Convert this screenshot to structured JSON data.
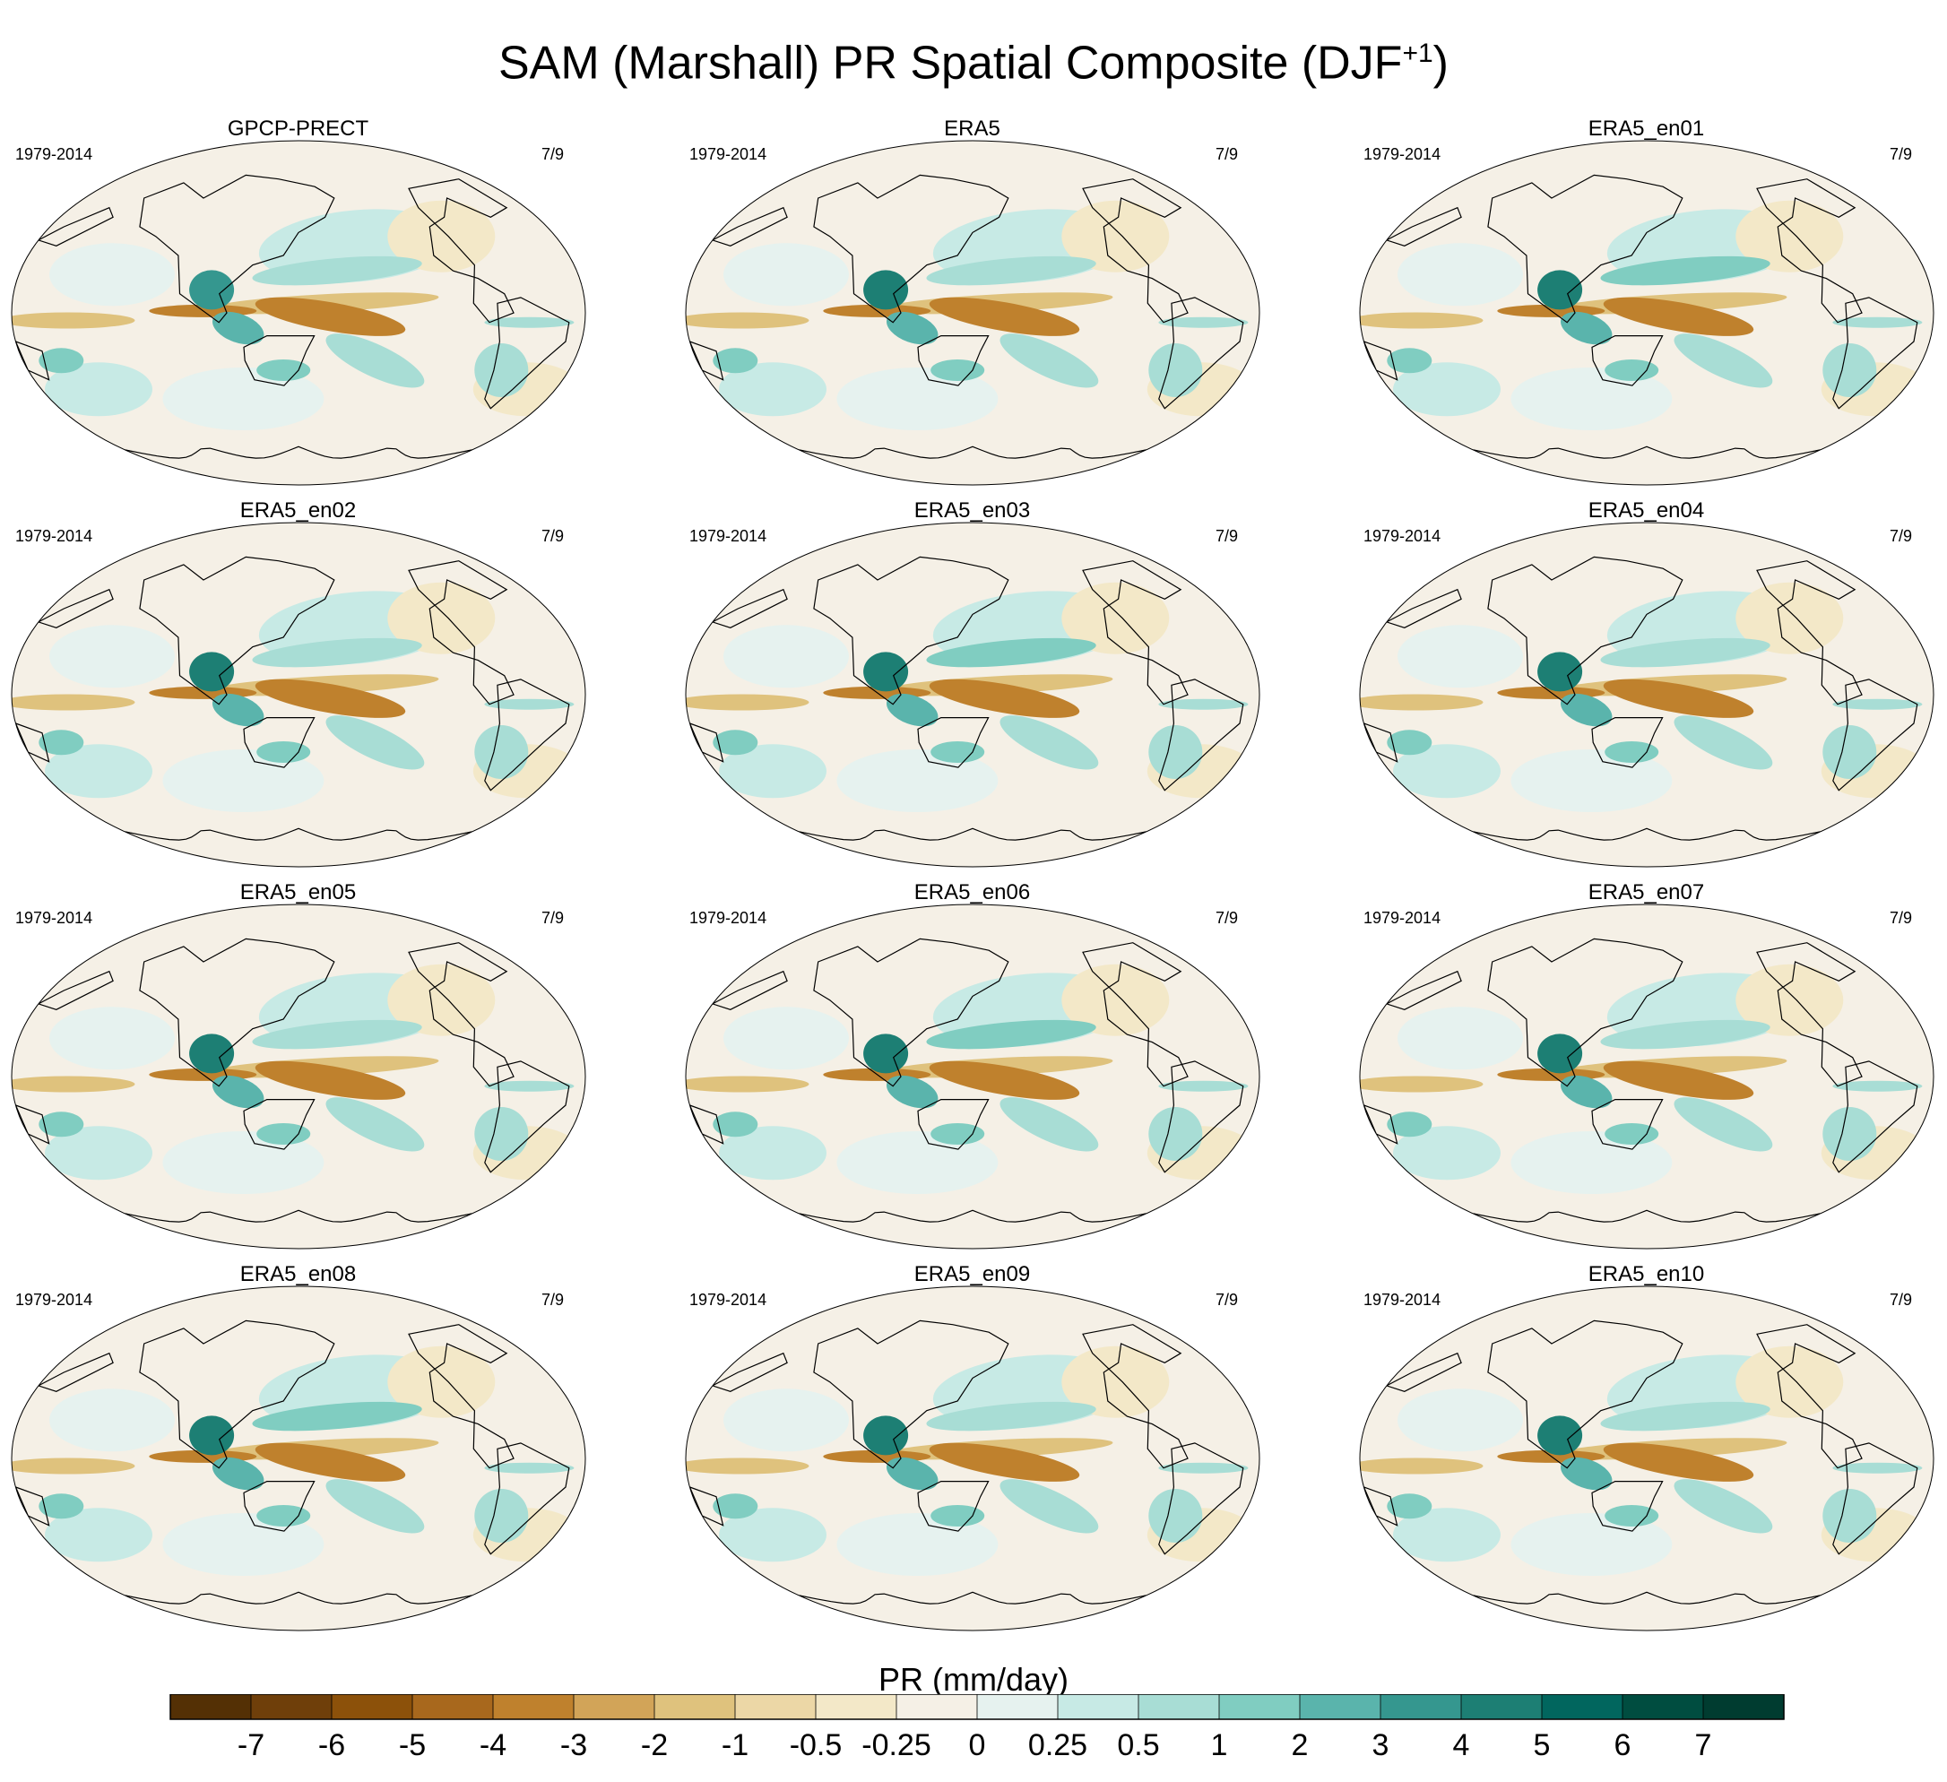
{
  "figure": {
    "title": "SAM (Marshall) PR Spatial Composite (DJF",
    "title_superscript": "+1",
    "title_close": ")"
  },
  "colors": {
    "brown_dark": "#543005",
    "teal_dark": "#003c30",
    "neutral": "#f5f0e6",
    "coast": "#000000"
  },
  "chart_data": {
    "type": "heatmap",
    "projection": "Robinson (Pacific-centered)",
    "variable": "PR",
    "units": "mm/day",
    "panels": [
      {
        "label": "GPCP-PRECT",
        "period": "1979-2014",
        "count": "7/9"
      },
      {
        "label": "ERA5",
        "period": "1979-2014",
        "count": "7/9"
      },
      {
        "label": "ERA5_en01",
        "period": "1979-2014",
        "count": "7/9"
      },
      {
        "label": "ERA5_en02",
        "period": "1979-2014",
        "count": "7/9"
      },
      {
        "label": "ERA5_en03",
        "period": "1979-2014",
        "count": "7/9"
      },
      {
        "label": "ERA5_en04",
        "period": "1979-2014",
        "count": "7/9"
      },
      {
        "label": "ERA5_en05",
        "period": "1979-2014",
        "count": "7/9"
      },
      {
        "label": "ERA5_en06",
        "period": "1979-2014",
        "count": "7/9"
      },
      {
        "label": "ERA5_en07",
        "period": "1979-2014",
        "count": "7/9"
      },
      {
        "label": "ERA5_en08",
        "period": "1979-2014",
        "count": "7/9"
      },
      {
        "label": "ERA5_en09",
        "period": "1979-2014",
        "count": "7/9"
      },
      {
        "label": "ERA5_en10",
        "period": "1979-2014",
        "count": "7/9"
      }
    ],
    "colorbar": {
      "title": "PR (mm/day)",
      "levels": [
        "-7",
        "-6",
        "-5",
        "-4",
        "-3",
        "-2",
        "-1",
        "-0.5",
        "-0.25",
        "0",
        "0.25",
        "0.5",
        "1",
        "2",
        "3",
        "4",
        "5",
        "6",
        "7"
      ],
      "colors": [
        "#543005",
        "#6f3f0a",
        "#8c510a",
        "#a8681d",
        "#bf812d",
        "#d2a458",
        "#dfc27d",
        "#ecd7a6",
        "#f3e8c8",
        "#f5f0e6",
        "#e6f2ef",
        "#c7eae5",
        "#a8ddd5",
        "#80cdc1",
        "#5ab4ac",
        "#35978f",
        "#1d7f74",
        "#01665e",
        "#004d40",
        "#003c30"
      ]
    }
  }
}
